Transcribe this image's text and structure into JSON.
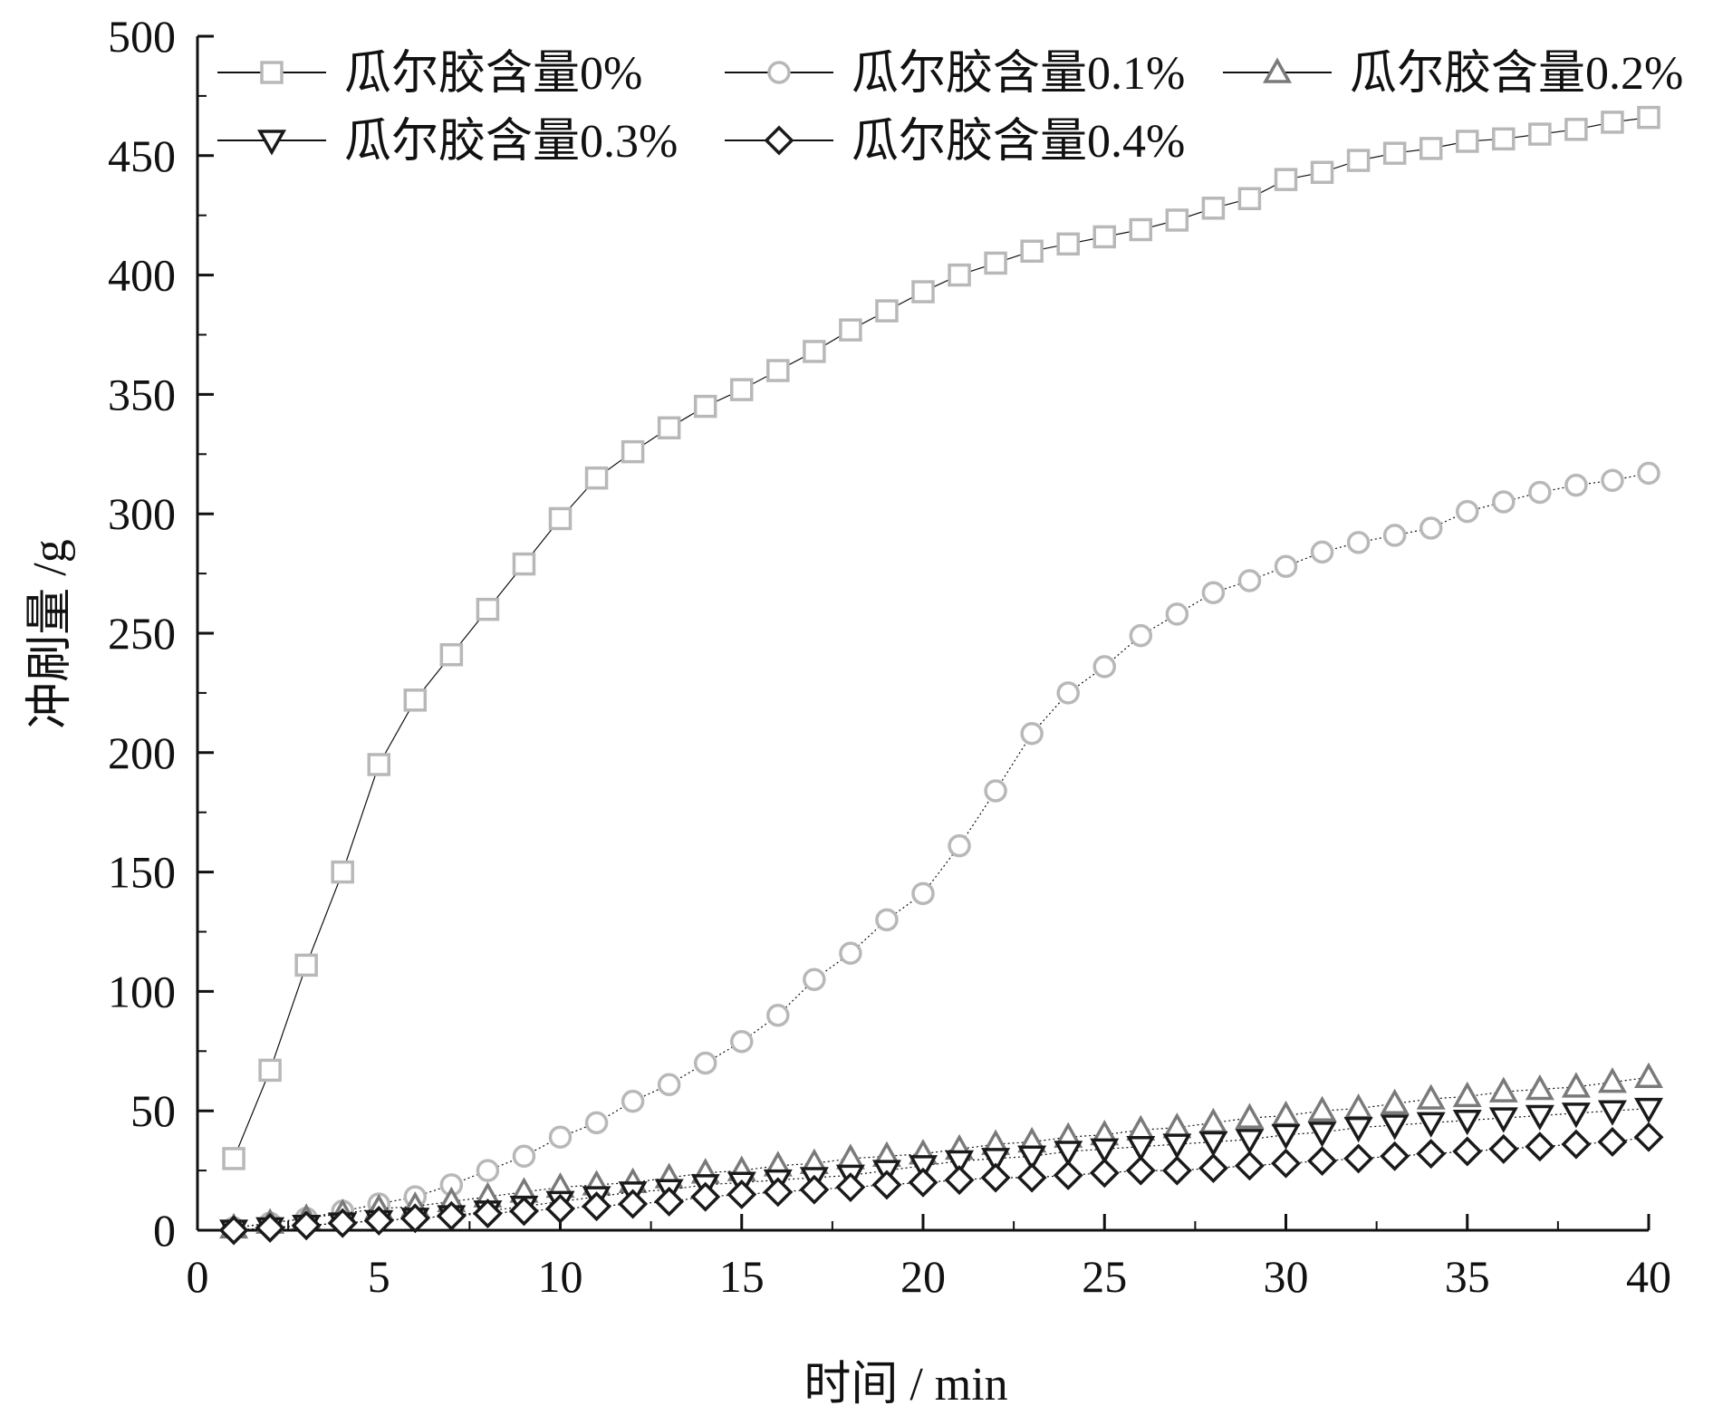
{
  "chart_data": {
    "type": "scatter",
    "xlabel": "时间 / min",
    "ylabel": "冲刷量 /g",
    "xlim": [
      0,
      40
    ],
    "ylim": [
      0,
      500
    ],
    "xticks": [
      "0",
      "5",
      "10",
      "15",
      "20",
      "25",
      "30",
      "35",
      "40"
    ],
    "yticks": [
      "0",
      "50",
      "100",
      "150",
      "200",
      "250",
      "300",
      "350",
      "400",
      "450",
      "500"
    ],
    "grid": false,
    "legend_position": "top",
    "x": [
      1,
      2,
      3,
      4,
      5,
      6,
      7,
      8,
      9,
      10,
      11,
      12,
      13,
      14,
      15,
      16,
      17,
      18,
      19,
      20,
      21,
      22,
      23,
      24,
      25,
      26,
      27,
      28,
      29,
      30,
      31,
      32,
      33,
      34,
      35,
      36,
      37,
      38,
      39,
      40
    ],
    "series": [
      {
        "name": "瓜尔胶含量0%",
        "marker": "square",
        "color": "#b8b8b8",
        "values": [
          30,
          67,
          111,
          150,
          195,
          222,
          241,
          260,
          279,
          298,
          315,
          326,
          336,
          345,
          352,
          360,
          368,
          377,
          385,
          393,
          400,
          405,
          410,
          413,
          416,
          419,
          423,
          428,
          432,
          440,
          443,
          448,
          451,
          453,
          456,
          457,
          459,
          461,
          464,
          466
        ]
      },
      {
        "name": "瓜尔胶含量0.1%",
        "marker": "circle",
        "color": "#b8b8b8",
        "values": [
          1,
          3,
          5,
          8,
          11,
          14,
          19,
          25,
          31,
          39,
          45,
          54,
          61,
          70,
          79,
          90,
          105,
          116,
          130,
          141,
          161,
          184,
          208,
          225,
          236,
          249,
          258,
          267,
          272,
          278,
          284,
          288,
          291,
          294,
          301,
          305,
          309,
          312,
          314,
          317
        ]
      },
      {
        "name": "瓜尔胶含量0.2%",
        "marker": "triangle-up",
        "color": "#7a7a7a",
        "values": [
          1,
          3,
          5,
          7,
          9,
          10,
          12,
          14,
          16,
          18,
          19,
          20,
          22,
          24,
          25,
          27,
          28,
          30,
          31,
          32,
          34,
          36,
          37,
          39,
          40,
          42,
          43,
          45,
          47,
          48,
          50,
          51,
          53,
          55,
          56,
          58,
          59,
          60,
          62,
          64
        ]
      },
      {
        "name": "瓜尔胶含量0.3%",
        "marker": "triangle-down",
        "color": "#1a1a1a",
        "values": [
          0,
          1,
          2,
          3,
          4,
          5,
          6,
          8,
          10,
          12,
          14,
          16,
          17,
          19,
          20,
          21,
          22,
          23,
          25,
          27,
          29,
          30,
          31,
          33,
          34,
          35,
          36,
          37,
          38,
          40,
          41,
          43,
          44,
          45,
          46,
          47,
          48,
          49,
          50,
          51
        ]
      },
      {
        "name": "瓜尔胶含量0.4%",
        "marker": "diamond",
        "color": "#1a1a1a",
        "values": [
          0,
          1,
          2,
          3,
          4,
          5,
          6,
          7,
          8,
          9,
          10,
          11,
          12,
          14,
          15,
          16,
          17,
          18,
          19,
          20,
          21,
          22,
          22,
          23,
          24,
          25,
          25,
          26,
          27,
          28,
          29,
          30,
          31,
          32,
          33,
          34,
          35,
          36,
          37,
          39
        ]
      }
    ]
  }
}
